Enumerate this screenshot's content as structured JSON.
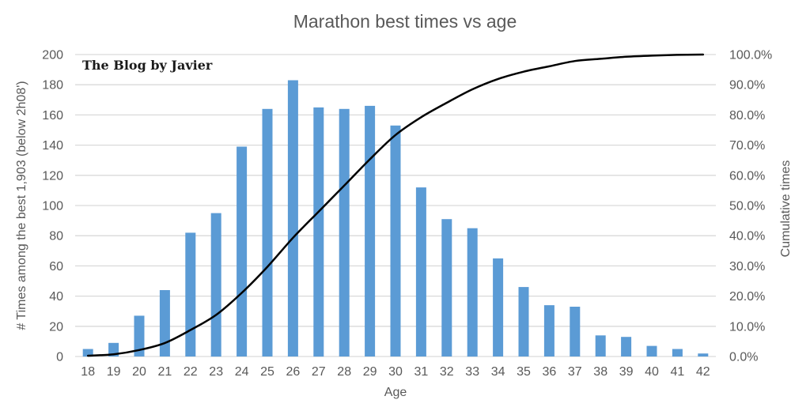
{
  "chart_data": {
    "type": "bar",
    "title": "Marathon best times vs age",
    "watermark": "The Blog by Javier",
    "xlabel": "Age",
    "ylabel_left": "# Times among the best 1,903 (below 2h08')",
    "ylabel_right": "Cumulative times",
    "categories": [
      "18",
      "19",
      "20",
      "21",
      "22",
      "23",
      "24",
      "25",
      "26",
      "27",
      "28",
      "29",
      "30",
      "31",
      "32",
      "33",
      "34",
      "35",
      "36",
      "37",
      "38",
      "39",
      "40",
      "41",
      "42"
    ],
    "series": [
      {
        "name": "# Times among the best 1,903",
        "type": "bar",
        "axis": "left",
        "color": "#5B9BD5",
        "values": [
          5,
          9,
          27,
          44,
          82,
          95,
          139,
          164,
          183,
          165,
          164,
          166,
          153,
          112,
          91,
          85,
          65,
          46,
          34,
          33,
          14,
          13,
          7,
          5,
          2
        ]
      },
      {
        "name": "Cumulative times",
        "type": "line",
        "axis": "right",
        "color": "#000000",
        "values": [
          0.26,
          0.74,
          2.15,
          4.47,
          8.78,
          13.77,
          21.07,
          29.69,
          39.31,
          47.98,
          56.59,
          65.32,
          73.36,
          79.24,
          84.03,
          88.49,
          91.91,
          94.32,
          96.11,
          97.85,
          98.58,
          99.26,
          99.63,
          99.89,
          100.0
        ]
      }
    ],
    "left_axis": {
      "min": 0,
      "max": 200,
      "step": 20,
      "ticks": [
        "0",
        "20",
        "40",
        "60",
        "80",
        "100",
        "120",
        "140",
        "160",
        "180",
        "200"
      ]
    },
    "right_axis": {
      "min": 0,
      "max": 100,
      "step": 10,
      "ticks": [
        "0.0%",
        "10.0%",
        "20.0%",
        "30.0%",
        "40.0%",
        "50.0%",
        "60.0%",
        "70.0%",
        "80.0%",
        "90.0%",
        "100.0%"
      ]
    },
    "grid": true,
    "legend": "none",
    "colors": {
      "bar": "#5B9BD5",
      "line": "#000000",
      "gridline": "#D9D9D9",
      "axis_text": "#595959",
      "title_text": "#595959",
      "watermark_text": "#1a1a1a",
      "background": "#FFFFFF"
    }
  }
}
